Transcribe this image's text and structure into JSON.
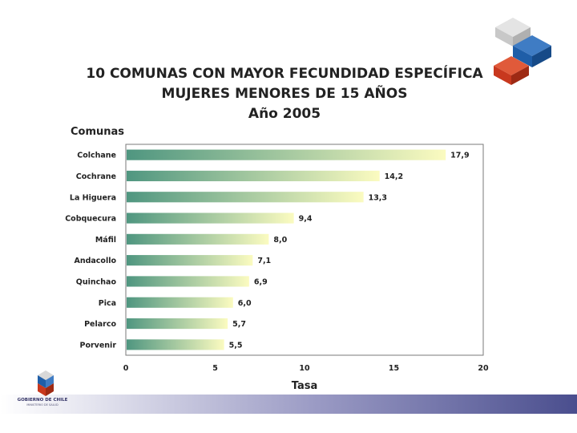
{
  "colors": {
    "bar_start": "#4f9680",
    "bar_end": "#fbfbc0",
    "plot_border": "#7a7a7a",
    "logo_white": "#e4e4e4",
    "logo_blue": "#1f5ea8",
    "logo_red": "#c8381e"
  },
  "footer": {
    "gov_name": "GOBIERNO DE CHILE",
    "ministry": "MINISTERIO DE SALUD"
  },
  "chart_data": {
    "type": "bar",
    "orientation": "horizontal",
    "title_lines": [
      "10 COMUNAS CON MAYOR FECUNDIDAD ESPECÍFICA",
      "MUJERES MENORES DE 15 AÑOS",
      "Año 2005"
    ],
    "ylabel": "Comunas",
    "xlabel": "Tasa",
    "categories": [
      "Colchane",
      "Cochrane",
      "La Higuera",
      "Cobquecura",
      "Máfil",
      "Andacollo",
      "Quinchao",
      "Pica",
      "Pelarco",
      "Porvenir"
    ],
    "values": [
      17.9,
      14.2,
      13.3,
      9.4,
      8.0,
      7.1,
      6.9,
      6.0,
      5.7,
      5.5
    ],
    "value_labels": [
      "17,9",
      "14,2",
      "13,3",
      "9,4",
      "8,0",
      "7,1",
      "6,9",
      "6,0",
      "5,7",
      "5,5"
    ],
    "xlim": [
      0,
      20
    ],
    "xticks": [
      0,
      5,
      10,
      15,
      20
    ],
    "grid": false
  }
}
